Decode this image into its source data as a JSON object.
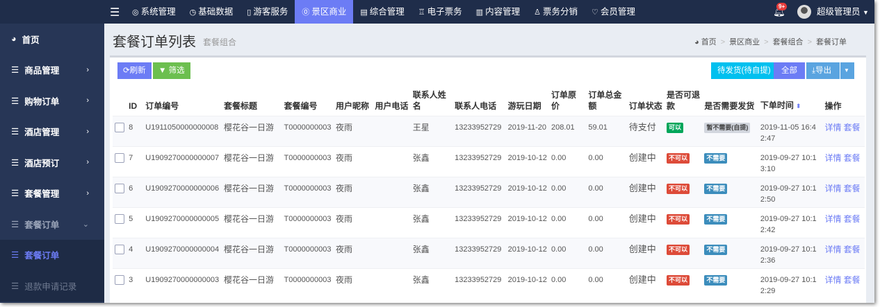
{
  "topnav": {
    "items": [
      {
        "icon": "gear-icon",
        "glyph": "◎",
        "label": "系统管理"
      },
      {
        "icon": "pie-chart-icon",
        "glyph": "◷",
        "label": "基础数据"
      },
      {
        "icon": "calendar-icon",
        "glyph": "▯",
        "label": "游客服务"
      },
      {
        "icon": "coin-icon",
        "glyph": "⓪",
        "label": "景区商业",
        "active": true
      },
      {
        "icon": "building-icon",
        "glyph": "▤",
        "label": "综合管理"
      },
      {
        "icon": "ticket-icon",
        "glyph": "♖",
        "label": "电子票务"
      },
      {
        "icon": "document-icon",
        "glyph": "▥",
        "label": "内容管理"
      },
      {
        "icon": "sitemap-icon",
        "glyph": "♙",
        "label": "票务分销"
      },
      {
        "icon": "shield-icon",
        "glyph": "♡",
        "label": "会员管理"
      }
    ],
    "notification_count": "9+",
    "user": "超级管理员"
  },
  "sidebar": {
    "items": [
      {
        "label": "首页",
        "icon": "dashboard-icon"
      },
      {
        "label": "商品管理",
        "chev": "›"
      },
      {
        "label": "购物订单",
        "chev": "›"
      },
      {
        "label": "酒店管理",
        "chev": "›"
      },
      {
        "label": "酒店预订",
        "chev": "›"
      },
      {
        "label": "套餐管理",
        "chev": "›"
      },
      {
        "label": "套餐订单",
        "chev": "⌄",
        "state": "open"
      },
      {
        "label": "套餐订单",
        "state": "active-sub"
      },
      {
        "label": "退款申请记录",
        "state": "sub"
      }
    ]
  },
  "header": {
    "title": "套餐订单列表",
    "subtitle": "套餐组合",
    "breadcrumb": [
      "首页",
      "景区商业",
      "套餐组合",
      "套餐订单"
    ]
  },
  "toolbar": {
    "refresh": "刷新",
    "filter": "筛选",
    "pending": "待发货(待自提)",
    "all": "全部",
    "export": "导出"
  },
  "colors": {
    "nav_bg": "#1f2d4a",
    "accent": "#6c7cf5",
    "green": "#00a65a",
    "red": "#dd4b39",
    "blue": "#3c8dbc",
    "gray": "#d2d6de",
    "cyan": "#00c0ef",
    "filter_green": "#6cbf4f"
  },
  "table": {
    "columns": [
      "ID",
      "订单编号",
      "套餐标题",
      "套餐编号",
      "用户昵称",
      "用户电话",
      "联系人姓名",
      "联系人电话",
      "游玩日期",
      "订单原价",
      "订单总金额",
      "订单状态",
      "是否可退款",
      "是否需要发货",
      "下单时间",
      "操作"
    ],
    "actions": [
      "详情",
      "套餐"
    ],
    "rows": [
      {
        "id": "8",
        "order_no": "U1911050000000008",
        "title": "樱花谷一日游",
        "pkg_no": "T0000000003",
        "nick": "夜雨",
        "phone": "",
        "contact": "王星",
        "contact_phone": "13233952729",
        "date": "2019-11-20",
        "price": "208.01",
        "total": "59.01",
        "status": "待支付",
        "refund": "可以",
        "refund_color": "green",
        "ship": "暂不需要(自提)",
        "ship_color": "gray",
        "time": "2019-11-05 16:42:47"
      },
      {
        "id": "7",
        "order_no": "U1909270000000007",
        "title": "樱花谷一日游",
        "pkg_no": "T0000000003",
        "nick": "夜雨",
        "phone": "",
        "contact": "张鑫",
        "contact_phone": "13233952729",
        "date": "2019-10-12",
        "price": "0.00",
        "total": "0.00",
        "status": "创建中",
        "refund": "不可以",
        "refund_color": "red",
        "ship": "不需要",
        "ship_color": "blue",
        "time": "2019-09-27 10:13:10"
      },
      {
        "id": "6",
        "order_no": "U1909270000000006",
        "title": "樱花谷一日游",
        "pkg_no": "T0000000003",
        "nick": "夜雨",
        "phone": "",
        "contact": "张鑫",
        "contact_phone": "13233952729",
        "date": "2019-10-12",
        "price": "0.00",
        "total": "0.00",
        "status": "创建中",
        "refund": "不可以",
        "refund_color": "red",
        "ship": "不需要",
        "ship_color": "blue",
        "time": "2019-09-27 10:12:50"
      },
      {
        "id": "5",
        "order_no": "U1909270000000005",
        "title": "樱花谷一日游",
        "pkg_no": "T0000000003",
        "nick": "夜雨",
        "phone": "",
        "contact": "张鑫",
        "contact_phone": "13233952729",
        "date": "2019-10-12",
        "price": "0.00",
        "total": "0.00",
        "status": "创建中",
        "refund": "不可以",
        "refund_color": "red",
        "ship": "不需要",
        "ship_color": "blue",
        "time": "2019-09-27 10:12:42"
      },
      {
        "id": "4",
        "order_no": "U1909270000000004",
        "title": "樱花谷一日游",
        "pkg_no": "T0000000003",
        "nick": "夜雨",
        "phone": "",
        "contact": "张鑫",
        "contact_phone": "13233952729",
        "date": "2019-10-12",
        "price": "0.00",
        "total": "0.00",
        "status": "创建中",
        "refund": "不可以",
        "refund_color": "red",
        "ship": "不需要",
        "ship_color": "blue",
        "time": "2019-09-27 10:12:36"
      },
      {
        "id": "3",
        "order_no": "U1909270000000003",
        "title": "樱花谷一日游",
        "pkg_no": "T0000000003",
        "nick": "夜雨",
        "phone": "",
        "contact": "张鑫",
        "contact_phone": "13233952729",
        "date": "2019-10-12",
        "price": "0.00",
        "total": "0.00",
        "status": "创建中",
        "refund": "不可以",
        "refund_color": "red",
        "ship": "不需要",
        "ship_color": "blue",
        "time": "2019-09-27 10:12:29"
      }
    ]
  }
}
